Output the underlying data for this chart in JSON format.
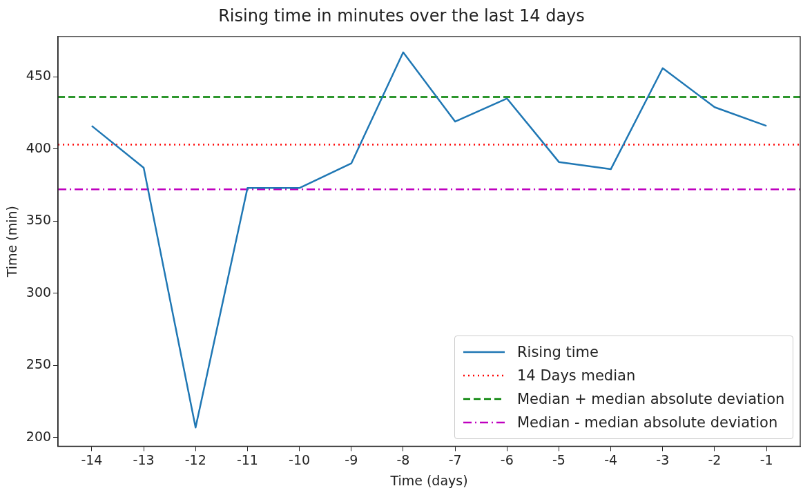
{
  "chart_data": {
    "type": "line",
    "title": "Rising time in minutes over the last 14 days",
    "xlabel": "Time (days)",
    "ylabel": "Time (min)",
    "x": [
      -14,
      -13,
      -12,
      -11,
      -10,
      -9,
      -8,
      -7,
      -6,
      -5,
      -4,
      -3,
      -2,
      -1
    ],
    "series": [
      {
        "name": "Rising time",
        "color": "#1f77b4",
        "values": [
          416,
          387,
          207,
          373,
          373,
          390,
          467,
          419,
          435,
          391,
          386,
          456,
          429,
          416
        ]
      }
    ],
    "ref_lines": [
      {
        "axis": "y",
        "value": 403,
        "label": "14 Days median",
        "color": "#ff0000",
        "line_style": "dotted"
      },
      {
        "axis": "y",
        "value": 436,
        "label": "Median + median absolute deviation",
        "color": "#008000",
        "line_style": "dashed"
      },
      {
        "axis": "y",
        "value": 372,
        "label": "Median - median absolute deviation",
        "color": "#bf00bf",
        "line_style": "dashdot"
      }
    ],
    "xlim": [
      -14.65,
      -0.35
    ],
    "xticks": [
      -14,
      -13,
      -12,
      -11,
      -10,
      -9,
      -8,
      -7,
      -6,
      -5,
      -4,
      -3,
      -2,
      -1
    ],
    "ylim": [
      194,
      478
    ],
    "yticks": [
      200,
      250,
      300,
      350,
      400,
      450
    ],
    "legend": "bottom right",
    "grid": false,
    "marker": "none",
    "line_style": "solid"
  }
}
